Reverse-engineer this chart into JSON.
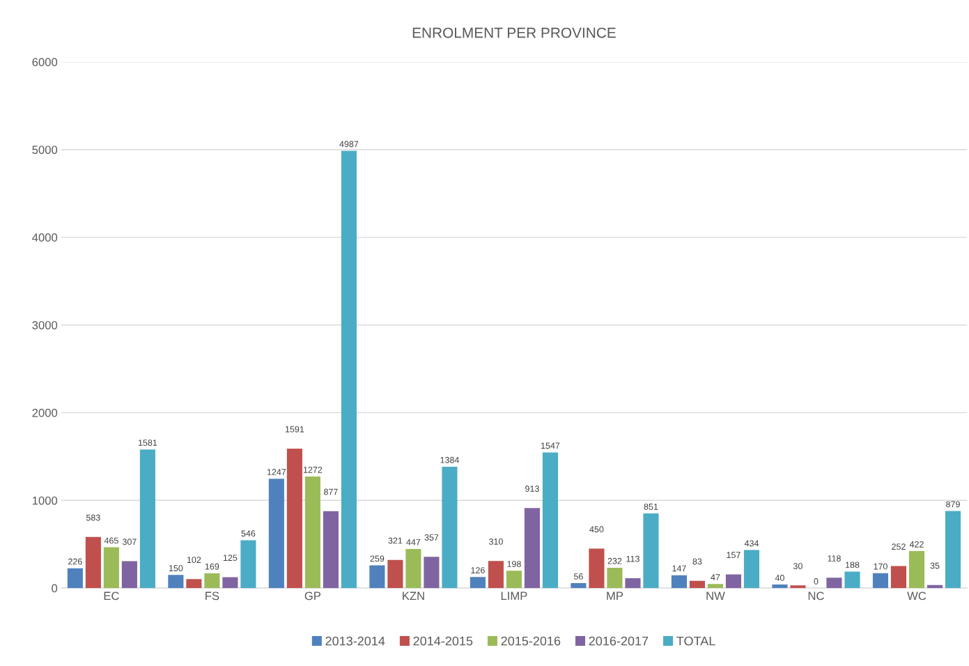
{
  "chart_data": {
    "type": "bar",
    "title": "ENROLMENT PER PROVINCE",
    "categories": [
      "EC",
      "FS",
      "GP",
      "KZN",
      "LIMP",
      "MP",
      "NW",
      "NC",
      "WC"
    ],
    "series": [
      {
        "name": "2013-2014",
        "color": "#4f81bd",
        "values": [
          226,
          150,
          1247,
          259,
          126,
          56,
          147,
          40,
          170
        ]
      },
      {
        "name": "2014-2015",
        "color": "#c0504d",
        "values": [
          583,
          102,
          1591,
          321,
          310,
          450,
          83,
          30,
          252
        ]
      },
      {
        "name": "2015-2016",
        "color": "#9bbb59",
        "values": [
          465,
          169,
          1272,
          447,
          198,
          232,
          47,
          0,
          422
        ]
      },
      {
        "name": "2016-2017",
        "color": "#8064a2",
        "values": [
          307,
          125,
          877,
          357,
          913,
          113,
          157,
          118,
          35
        ]
      },
      {
        "name": "TOTAL",
        "color": "#4bacc6",
        "values": [
          1581,
          546,
          4987,
          1384,
          1547,
          851,
          434,
          188,
          879
        ]
      }
    ],
    "ylim": [
      0,
      6000
    ],
    "yticks": [
      0,
      1000,
      2000,
      3000,
      4000,
      5000,
      6000
    ],
    "grid": "y",
    "legend": "bottom",
    "data_labels": true
  }
}
